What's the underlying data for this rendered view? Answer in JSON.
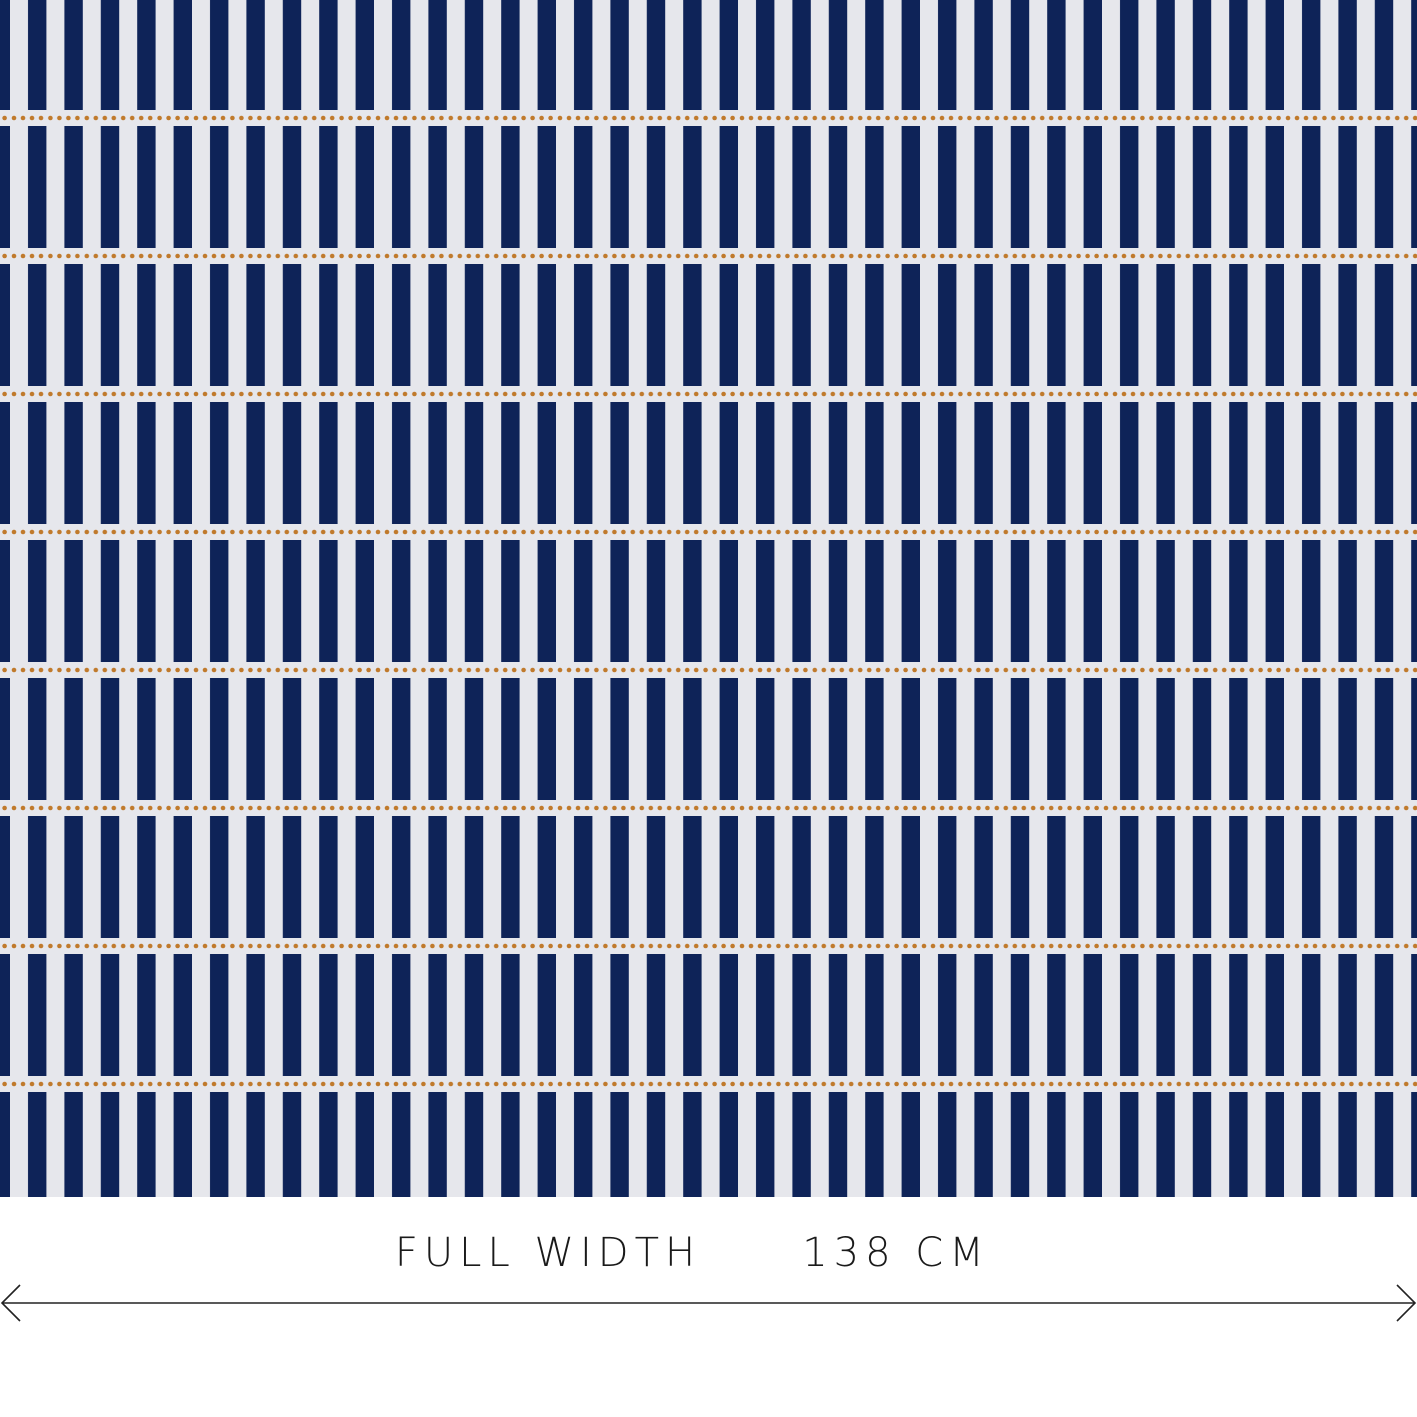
{
  "caption": {
    "label": "FULL WIDTH",
    "measurement": "138 CM"
  }
}
